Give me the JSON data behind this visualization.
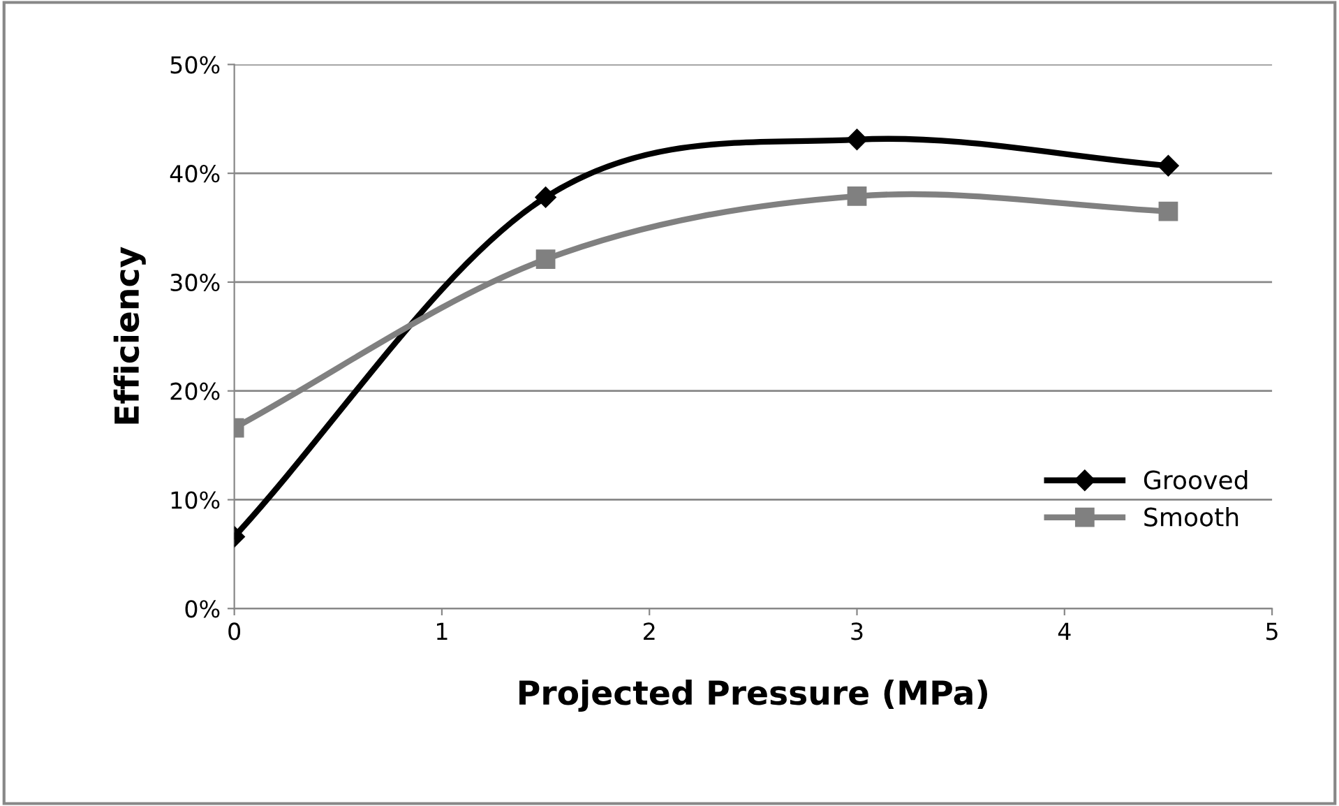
{
  "chart_data": {
    "type": "line",
    "xlabel": "Projected Pressure (MPa)",
    "ylabel": "Efficiency",
    "x": [
      0,
      1.5,
      3,
      4.5
    ],
    "series": [
      {
        "name": "Grooved",
        "color": "#000000",
        "marker": "diamond",
        "values": [
          6.6,
          37.8,
          43.1,
          40.7
        ]
      },
      {
        "name": "Smooth",
        "color": "#808080",
        "marker": "square",
        "values": [
          16.6,
          32.1,
          37.9,
          36.5
        ]
      }
    ],
    "xlim": [
      0,
      5
    ],
    "xticks": [
      0,
      1,
      2,
      3,
      4,
      5
    ],
    "ylim": [
      0,
      50
    ],
    "yticks": [
      {
        "value": 0,
        "label": "0%"
      },
      {
        "value": 10,
        "label": "10%"
      },
      {
        "value": 20,
        "label": "20%"
      },
      {
        "value": 30,
        "label": "30%"
      },
      {
        "value": 40,
        "label": "40%"
      },
      {
        "value": 50,
        "label": "50%"
      }
    ],
    "grid": "y",
    "legend": "bottom right",
    "line_style": "solid"
  }
}
